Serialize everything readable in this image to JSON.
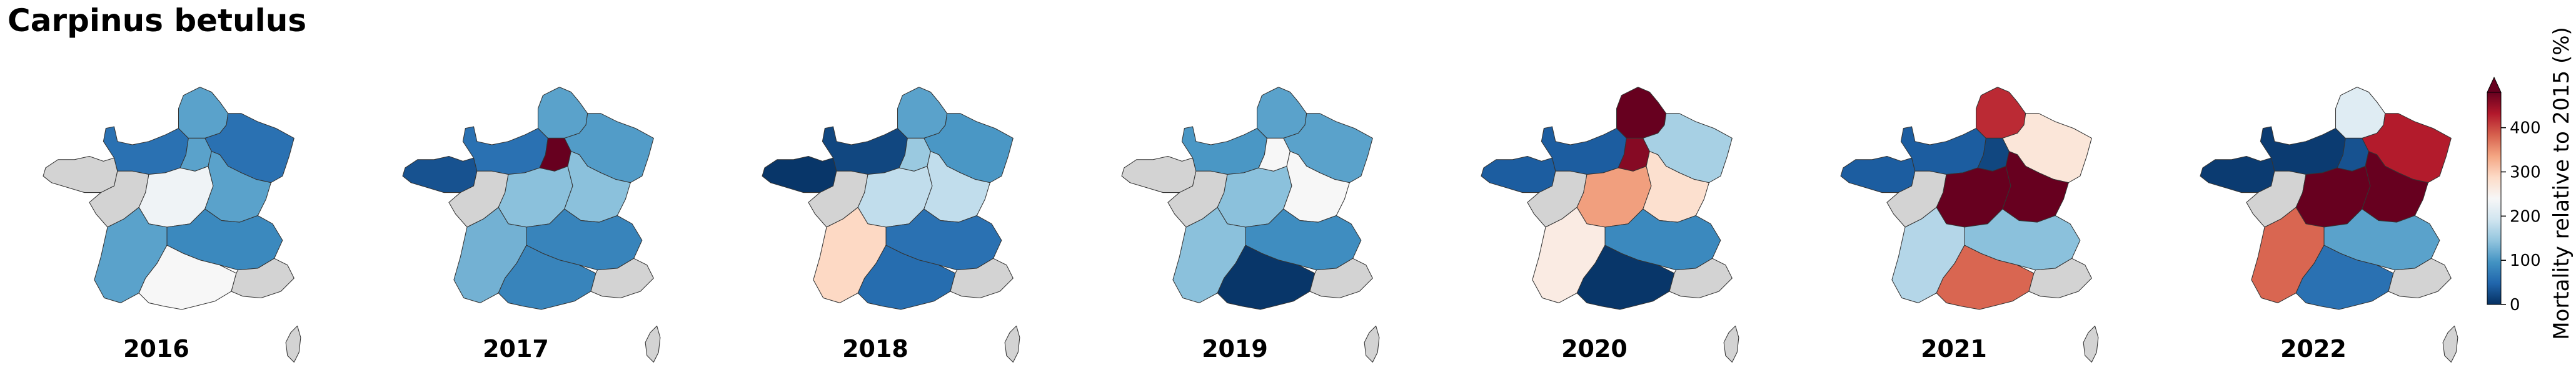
{
  "chart_data": {
    "type": "choropleth",
    "title": "Carpinus betulus",
    "years": [
      "2016",
      "2017",
      "2018",
      "2019",
      "2020",
      "2021",
      "2022"
    ],
    "region_order": [
      "Bretagne",
      "Normandie",
      "Hauts-de-France",
      "Grand Est",
      "Pays de la Loire",
      "Centre-Val de Loire",
      "Ile-de-France",
      "Bourgogne-Franche-Comte",
      "Nouvelle-Aquitaine",
      "Auvergne-Rhone-Alpes",
      "Occitanie",
      "Provence-Alpes-Cote d'Azur",
      "Corse"
    ],
    "maps": [
      {
        "year": "2016",
        "values": {
          "Bretagne": null,
          "Normandie": 60,
          "Hauts-de-France": 110,
          "Grand Est": 60,
          "Pays de la Loire": null,
          "Centre-Val de Loire": 230,
          "Ile-de-France": 110,
          "Bourgogne-Franche-Comte": 110,
          "Nouvelle-Aquitaine": 110,
          "Auvergne-Rhone-Alpes": 85,
          "Occitanie": 240,
          "Provence-Alpes-Cote d'Azur": null,
          "Corse": null
        }
      },
      {
        "year": "2017",
        "values": {
          "Bretagne": 30,
          "Normandie": 60,
          "Hauts-de-France": 110,
          "Grand Est": 105,
          "Pays de la Loire": null,
          "Centre-Val de Loire": 140,
          "Ile-de-France": 480,
          "Bourgogne-Franche-Comte": 140,
          "Nouvelle-Aquitaine": 125,
          "Auvergne-Rhone-Alpes": 80,
          "Occitanie": 80,
          "Provence-Alpes-Cote d'Azur": null,
          "Corse": null
        }
      },
      {
        "year": "2018",
        "values": {
          "Bretagne": 5,
          "Normandie": 20,
          "Hauts-de-France": 110,
          "Grand Est": 100,
          "Pays de la Loire": null,
          "Centre-Val de Loire": 180,
          "Ile-de-France": 150,
          "Bourgogne-Franche-Comte": 180,
          "Nouvelle-Aquitaine": 290,
          "Auvergne-Rhone-Alpes": 60,
          "Occitanie": 55,
          "Provence-Alpes-Cote d'Azur": null,
          "Corse": null
        }
      },
      {
        "year": "2019",
        "values": {
          "Bretagne": null,
          "Normandie": 100,
          "Hauts-de-France": 110,
          "Grand Est": 110,
          "Pays de la Loire": null,
          "Centre-Val de Loire": 140,
          "Ile-de-France": 240,
          "Bourgogne-Franche-Comte": 240,
          "Nouvelle-Aquitaine": 140,
          "Auvergne-Rhone-Alpes": 90,
          "Occitanie": 5,
          "Provence-Alpes-Cote d'Azur": null,
          "Corse": null
        }
      },
      {
        "year": "2020",
        "values": {
          "Bretagne": 40,
          "Normandie": 40,
          "Hauts-de-France": 480,
          "Grand Est": 160,
          "Pays de la Loire": null,
          "Centre-Val de Loire": 340,
          "Ile-de-France": 460,
          "Bourgogne-Franche-Comte": 280,
          "Nouvelle-Aquitaine": 260,
          "Auvergne-Rhone-Alpes": 85,
          "Occitanie": 5,
          "Provence-Alpes-Cote d'Azur": null,
          "Corse": null
        }
      },
      {
        "year": "2021",
        "values": {
          "Bretagne": 40,
          "Normandie": 40,
          "Hauts-de-France": 420,
          "Grand Est": 270,
          "Pays de la Loire": null,
          "Centre-Val de Loire": 490,
          "Ile-de-France": 20,
          "Bourgogne-Franche-Comte": 490,
          "Nouvelle-Aquitaine": 170,
          "Auvergne-Rhone-Alpes": 140,
          "Occitanie": 380,
          "Provence-Alpes-Cote d'Azur": null,
          "Corse": null
        }
      },
      {
        "year": "2022",
        "values": {
          "Bretagne": 10,
          "Normandie": 10,
          "Hauts-de-France": 210,
          "Grand Est": 430,
          "Pays de la Loire": null,
          "Centre-Val de Loire": 490,
          "Ile-de-France": 30,
          "Bourgogne-Franche-Comte": 490,
          "Nouvelle-Aquitaine": 380,
          "Auvergne-Rhone-Alpes": 110,
          "Occitanie": 60,
          "Provence-Alpes-Cote d'Azur": null,
          "Corse": null
        }
      }
    ],
    "colorbar": {
      "label": "Mortality relative to 2015 (%)",
      "ticks": [
        0,
        100,
        200,
        300,
        400
      ],
      "range": [
        0,
        480
      ],
      "extend": "max",
      "colormap": "RdBu_r",
      "stops": [
        "#053061",
        "#2166ac",
        "#4393c3",
        "#92c5de",
        "#d1e5f0",
        "#f7f7f7",
        "#fddbc7",
        "#f4a582",
        "#d6604d",
        "#b2182b",
        "#67001f"
      ],
      "no_data_color": "#d3d3d3",
      "outline_color": "#333333"
    }
  }
}
